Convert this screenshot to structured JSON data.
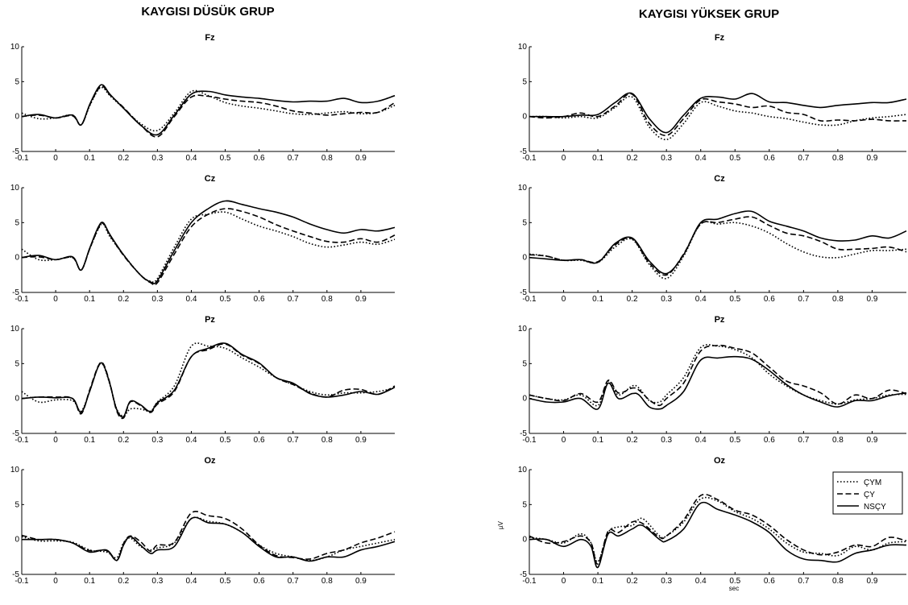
{
  "chart_data": [
    {
      "type": "line",
      "group": "KAYGISI DÜSÜK GRUP",
      "title": "Fz",
      "xlim": [
        -0.1,
        1.0
      ],
      "ylim": [
        -5,
        10
      ],
      "xticks": [
        -0.1,
        0,
        0.1,
        0.2,
        0.3,
        0.4,
        0.5,
        0.6,
        0.7,
        0.8,
        0.9
      ],
      "yticks": [
        -5,
        0,
        5,
        10
      ],
      "xlabel": "",
      "ylabel": "",
      "x": [
        -0.1,
        -0.05,
        0,
        0.05,
        0.075,
        0.1,
        0.125,
        0.14,
        0.16,
        0.2,
        0.25,
        0.3,
        0.35,
        0.4,
        0.45,
        0.5,
        0.55,
        0.6,
        0.65,
        0.7,
        0.75,
        0.8,
        0.85,
        0.9,
        0.95,
        1.0
      ],
      "series": [
        {
          "name": "ÇYM",
          "values": [
            0.5,
            -0.3,
            -0.2,
            0.2,
            -1.2,
            1.5,
            3.8,
            4.1,
            3.0,
            1.2,
            -1.0,
            -2.0,
            0.5,
            3.6,
            3.0,
            2.0,
            1.5,
            1.2,
            0.8,
            0.4,
            0.3,
            0.5,
            0.7,
            0.4,
            0.6,
            1.6
          ]
        },
        {
          "name": "ÇY",
          "values": [
            0.0,
            0.2,
            -0.2,
            0.1,
            -1.2,
            1.6,
            3.9,
            4.3,
            3.1,
            1.3,
            -1.2,
            -2.9,
            0.0,
            2.8,
            2.9,
            2.5,
            2.2,
            2.0,
            1.5,
            0.8,
            0.5,
            0.2,
            0.4,
            0.6,
            0.6,
            2.0
          ]
        },
        {
          "name": "NSÇY",
          "values": [
            0.0,
            0.3,
            -0.2,
            0.2,
            -1.2,
            1.7,
            4.1,
            4.5,
            3.2,
            1.2,
            -1.2,
            -2.6,
            0.2,
            3.2,
            3.6,
            3.1,
            2.8,
            2.6,
            2.3,
            2.1,
            2.2,
            2.2,
            2.6,
            2.0,
            2.2,
            3.0
          ]
        }
      ]
    },
    {
      "type": "line",
      "group": "KAYGISI DÜSÜK GRUP",
      "title": "Cz",
      "xlim": [
        -0.1,
        1.0
      ],
      "ylim": [
        -5,
        10
      ],
      "xticks": [
        -0.1,
        0,
        0.1,
        0.2,
        0.3,
        0.4,
        0.5,
        0.6,
        0.7,
        0.8,
        0.9
      ],
      "yticks": [
        -5,
        0,
        5,
        10
      ],
      "xlabel": "",
      "ylabel": "",
      "x": [
        -0.1,
        -0.05,
        0,
        0.05,
        0.075,
        0.1,
        0.125,
        0.14,
        0.16,
        0.2,
        0.25,
        0.28,
        0.3,
        0.35,
        0.4,
        0.45,
        0.5,
        0.55,
        0.6,
        0.65,
        0.7,
        0.75,
        0.8,
        0.85,
        0.9,
        0.95,
        1.0
      ],
      "series": [
        {
          "name": "ÇYM",
          "values": [
            1.2,
            -0.3,
            -0.3,
            0.0,
            -1.8,
            1.2,
            4.0,
            4.8,
            3.0,
            0.4,
            -2.5,
            -3.4,
            -3.0,
            1.5,
            5.5,
            6.2,
            6.5,
            5.5,
            4.5,
            3.8,
            3.0,
            2.0,
            1.5,
            1.8,
            2.2,
            1.9,
            2.6
          ]
        },
        {
          "name": "ÇY",
          "values": [
            0.0,
            0.1,
            -0.3,
            0.0,
            -1.8,
            1.2,
            4.1,
            4.9,
            3.2,
            0.3,
            -2.5,
            -3.6,
            -3.6,
            0.5,
            4.4,
            6.2,
            7.0,
            6.6,
            5.8,
            4.7,
            3.8,
            3.0,
            2.3,
            2.2,
            2.7,
            2.2,
            3.2
          ]
        },
        {
          "name": "NSÇY",
          "values": [
            0.0,
            0.3,
            -0.3,
            0.1,
            -1.8,
            1.3,
            4.3,
            5.0,
            3.3,
            0.4,
            -2.5,
            -3.5,
            -3.3,
            1.0,
            5.0,
            7.0,
            8.1,
            7.6,
            7.0,
            6.5,
            5.8,
            4.8,
            4.0,
            3.5,
            4.0,
            3.8,
            4.3
          ]
        }
      ]
    },
    {
      "type": "line",
      "group": "KAYGISI DÜSÜK GRUP",
      "title": "Pz",
      "xlim": [
        -0.1,
        1.0
      ],
      "ylim": [
        -5,
        10
      ],
      "xticks": [
        -0.1,
        0,
        0.1,
        0.2,
        0.3,
        0.4,
        0.5,
        0.6,
        0.7,
        0.8,
        0.9
      ],
      "yticks": [
        -5,
        0,
        5,
        10
      ],
      "xlabel": "",
      "ylabel": "",
      "x": [
        -0.1,
        -0.05,
        0,
        0.05,
        0.075,
        0.1,
        0.125,
        0.14,
        0.16,
        0.18,
        0.2,
        0.22,
        0.25,
        0.28,
        0.3,
        0.35,
        0.4,
        0.45,
        0.5,
        0.55,
        0.6,
        0.65,
        0.7,
        0.75,
        0.8,
        0.85,
        0.9,
        0.95,
        1.0
      ],
      "series": [
        {
          "name": "ÇYM",
          "values": [
            1.0,
            -0.5,
            -0.2,
            -0.3,
            -1.8,
            1.0,
            4.5,
            4.8,
            2.0,
            -1.5,
            -2.5,
            -1.5,
            -1.5,
            -1.8,
            -0.5,
            1.8,
            7.5,
            7.5,
            7.2,
            5.8,
            4.5,
            3.0,
            2.0,
            1.0,
            0.5,
            0.8,
            0.8,
            1.0,
            1.5
          ]
        },
        {
          "name": "ÇY",
          "values": [
            0.0,
            0.2,
            0.2,
            0.0,
            -2.2,
            1.2,
            4.6,
            5.0,
            2.2,
            -1.8,
            -2.8,
            -0.5,
            -1.0,
            -2.0,
            -0.8,
            1.0,
            6.0,
            7.0,
            7.8,
            6.2,
            5.0,
            3.0,
            2.0,
            0.8,
            0.2,
            1.2,
            1.3,
            0.6,
            1.8
          ]
        },
        {
          "name": "NSÇY",
          "values": [
            0.0,
            0.2,
            0.1,
            0.0,
            -2.0,
            1.0,
            4.5,
            4.9,
            2.1,
            -1.6,
            -2.6,
            -0.4,
            -0.9,
            -1.9,
            -0.6,
            1.2,
            6.0,
            7.2,
            7.9,
            6.3,
            5.1,
            3.0,
            2.2,
            0.7,
            0.2,
            0.5,
            1.0,
            0.6,
            1.6
          ]
        }
      ]
    },
    {
      "type": "line",
      "group": "KAYGISI DÜSÜK GRUP",
      "title": "Oz",
      "xlim": [
        -0.1,
        1.0
      ],
      "ylim": [
        -5,
        10
      ],
      "xticks": [
        -0.1,
        0,
        0.1,
        0.2,
        0.3,
        0.4,
        0.5,
        0.6,
        0.7,
        0.8,
        0.9
      ],
      "yticks": [
        -5,
        0,
        5,
        10
      ],
      "xlabel": "",
      "ylabel": "",
      "x": [
        -0.1,
        -0.05,
        0,
        0.05,
        0.1,
        0.15,
        0.18,
        0.2,
        0.22,
        0.25,
        0.28,
        0.3,
        0.35,
        0.4,
        0.45,
        0.5,
        0.55,
        0.6,
        0.65,
        0.7,
        0.75,
        0.8,
        0.85,
        0.9,
        0.95,
        1.0
      ],
      "series": [
        {
          "name": "ÇYM",
          "values": [
            0.4,
            -0.2,
            -0.2,
            -0.4,
            -1.5,
            -1.8,
            -2.6,
            -0.5,
            0.2,
            -1.0,
            -1.5,
            -1.2,
            -0.5,
            3.0,
            2.6,
            2.2,
            1.0,
            -0.8,
            -2.0,
            -2.5,
            -3.0,
            -2.5,
            -1.5,
            -1.0,
            -0.5,
            0.0
          ]
        },
        {
          "name": "ÇY",
          "values": [
            0.6,
            0.0,
            0.0,
            -0.5,
            -1.6,
            -1.6,
            -3.0,
            -0.6,
            0.5,
            -0.3,
            -1.7,
            -0.8,
            -0.4,
            3.8,
            3.4,
            3.0,
            1.5,
            -0.8,
            -2.3,
            -2.6,
            -2.8,
            -2.0,
            -1.5,
            -0.5,
            0.2,
            1.1
          ]
        },
        {
          "name": "NSÇY",
          "values": [
            0.0,
            0.0,
            0.0,
            -0.5,
            -1.8,
            -1.5,
            -3.0,
            -0.8,
            0.4,
            -0.8,
            -2.0,
            -1.5,
            -1.0,
            3.0,
            2.4,
            2.2,
            1.0,
            -1.0,
            -2.5,
            -2.5,
            -3.1,
            -2.5,
            -2.5,
            -1.5,
            -1.0,
            -0.3
          ]
        }
      ]
    },
    {
      "type": "line",
      "group": "KAYGISI YÜKSEK GRUP",
      "title": "Fz",
      "xlim": [
        -0.1,
        1.0
      ],
      "ylim": [
        -5,
        10
      ],
      "xticks": [
        -0.1,
        0,
        0.1,
        0.2,
        0.3,
        0.4,
        0.5,
        0.6,
        0.7,
        0.8,
        0.9
      ],
      "yticks": [
        -5,
        0,
        5,
        10
      ],
      "xlabel": "",
      "ylabel": "",
      "x": [
        -0.1,
        -0.05,
        0,
        0.05,
        0.1,
        0.15,
        0.2,
        0.25,
        0.3,
        0.35,
        0.4,
        0.45,
        0.5,
        0.55,
        0.6,
        0.65,
        0.7,
        0.75,
        0.8,
        0.85,
        0.9,
        0.95,
        1.0
      ],
      "series": [
        {
          "name": "ÇYM",
          "values": [
            0.0,
            0.0,
            -0.2,
            0.0,
            -0.2,
            1.3,
            2.8,
            -1.5,
            -3.3,
            -1.0,
            2.0,
            1.5,
            0.8,
            0.5,
            0.0,
            -0.3,
            -0.8,
            -1.2,
            -1.2,
            -0.6,
            -0.2,
            0.0,
            0.3
          ]
        },
        {
          "name": "ÇY",
          "values": [
            0.0,
            -0.2,
            0.0,
            0.5,
            0.0,
            1.5,
            3.2,
            -1.0,
            -2.7,
            -0.3,
            2.4,
            2.1,
            1.8,
            1.3,
            1.5,
            0.6,
            0.3,
            -0.6,
            -0.5,
            -0.6,
            -0.4,
            -0.6,
            -0.6
          ]
        },
        {
          "name": "NSÇY",
          "values": [
            0.0,
            0.0,
            0.0,
            0.2,
            0.3,
            2.0,
            3.3,
            -0.3,
            -2.3,
            0.2,
            2.6,
            2.8,
            2.5,
            3.3,
            2.1,
            2.0,
            1.6,
            1.3,
            1.6,
            1.8,
            2.0,
            2.0,
            2.5
          ]
        }
      ]
    },
    {
      "type": "line",
      "group": "KAYGISI YÜKSEK GRUP",
      "title": "Cz",
      "xlim": [
        -0.1,
        1.0
      ],
      "ylim": [
        -5,
        10
      ],
      "xticks": [
        -0.1,
        0,
        0.1,
        0.2,
        0.3,
        0.4,
        0.5,
        0.6,
        0.7,
        0.8,
        0.9
      ],
      "yticks": [
        -5,
        0,
        5,
        10
      ],
      "xlabel": "",
      "ylabel": "",
      "x": [
        -0.1,
        -0.05,
        0,
        0.05,
        0.1,
        0.15,
        0.2,
        0.25,
        0.3,
        0.35,
        0.4,
        0.45,
        0.5,
        0.55,
        0.6,
        0.65,
        0.7,
        0.75,
        0.8,
        0.85,
        0.9,
        0.95,
        1.0
      ],
      "series": [
        {
          "name": "ÇYM",
          "values": [
            0.5,
            0.2,
            -0.4,
            -0.4,
            -0.7,
            1.5,
            2.6,
            -1.0,
            -3.0,
            0.2,
            4.8,
            4.8,
            5.0,
            4.5,
            3.5,
            2.0,
            0.8,
            0.1,
            0.0,
            0.5,
            1.0,
            1.0,
            1.2
          ]
        },
        {
          "name": "ÇY",
          "values": [
            0.4,
            0.2,
            -0.4,
            -0.3,
            -0.6,
            1.8,
            2.7,
            -0.8,
            -2.5,
            0.5,
            4.8,
            5.0,
            5.5,
            5.8,
            4.6,
            3.5,
            3.1,
            2.3,
            1.2,
            1.2,
            1.3,
            1.5,
            0.8
          ]
        },
        {
          "name": "NSÇY",
          "values": [
            0.0,
            -0.2,
            -0.4,
            -0.3,
            -0.7,
            2.0,
            2.8,
            -0.5,
            -2.3,
            0.4,
            5.0,
            5.5,
            6.3,
            6.6,
            5.2,
            4.5,
            3.8,
            2.8,
            2.4,
            2.5,
            3.1,
            2.8,
            3.8
          ]
        }
      ]
    },
    {
      "type": "line",
      "group": "KAYGISI YÜKSEK GRUP",
      "title": "Pz",
      "xlim": [
        -0.1,
        1.0
      ],
      "ylim": [
        -5,
        10
      ],
      "xticks": [
        -0.1,
        0,
        0.1,
        0.2,
        0.3,
        0.4,
        0.5,
        0.6,
        0.7,
        0.8,
        0.9
      ],
      "yticks": [
        -5,
        0,
        5,
        10
      ],
      "xlabel": "",
      "ylabel": "",
      "x": [
        -0.1,
        -0.05,
        0,
        0.05,
        0.1,
        0.13,
        0.16,
        0.2,
        0.22,
        0.25,
        0.28,
        0.3,
        0.35,
        0.4,
        0.45,
        0.5,
        0.55,
        0.6,
        0.65,
        0.7,
        0.75,
        0.8,
        0.85,
        0.9,
        0.95,
        1.0
      ],
      "series": [
        {
          "name": "ÇYM",
          "values": [
            0.5,
            0.0,
            -0.2,
            0.5,
            -1.0,
            2.5,
            0.5,
            1.8,
            1.5,
            -0.3,
            -0.5,
            0.5,
            3.0,
            7.3,
            7.5,
            7.0,
            5.8,
            3.5,
            1.8,
            0.5,
            -0.3,
            -0.8,
            -0.2,
            0.0,
            0.5,
            0.6
          ]
        },
        {
          "name": "ÇY",
          "values": [
            0.5,
            0.0,
            -0.3,
            0.7,
            -0.5,
            2.6,
            0.8,
            1.5,
            1.2,
            -0.2,
            -1.0,
            0.0,
            2.2,
            6.8,
            7.6,
            7.2,
            6.5,
            4.5,
            2.5,
            1.8,
            0.8,
            -0.8,
            0.5,
            0.0,
            1.2,
            0.7
          ]
        },
        {
          "name": "NSÇY",
          "values": [
            0.0,
            -0.5,
            -0.5,
            0.0,
            -1.5,
            2.2,
            0.0,
            0.7,
            0.5,
            -1.2,
            -1.5,
            -1.0,
            1.0,
            5.5,
            5.8,
            6.0,
            5.6,
            4.0,
            2.0,
            0.5,
            -0.5,
            -1.2,
            -0.3,
            -0.3,
            0.4,
            0.8
          ]
        }
      ]
    },
    {
      "type": "line",
      "group": "KAYGISI YÜKSEK GRUP",
      "title": "Oz",
      "xlim": [
        -0.1,
        1.0
      ],
      "ylim": [
        -5,
        10
      ],
      "xticks": [
        -0.1,
        0,
        0.1,
        0.2,
        0.3,
        0.4,
        0.5,
        0.6,
        0.7,
        0.8,
        0.9
      ],
      "yticks": [
        -5,
        0,
        5,
        10
      ],
      "xlabel": "sec",
      "ylabel": "µV",
      "x": [
        -0.1,
        -0.05,
        0,
        0.05,
        0.08,
        0.1,
        0.13,
        0.16,
        0.2,
        0.23,
        0.28,
        0.3,
        0.35,
        0.4,
        0.45,
        0.5,
        0.55,
        0.6,
        0.65,
        0.7,
        0.75,
        0.8,
        0.85,
        0.9,
        0.95,
        1.0
      ],
      "series": [
        {
          "name": "ÇYM",
          "values": [
            0.3,
            0.0,
            -0.5,
            0.8,
            -0.5,
            -3.2,
            1.0,
            1.8,
            2.0,
            3.0,
            0.5,
            0.5,
            2.5,
            5.8,
            5.5,
            4.0,
            3.0,
            1.5,
            -0.5,
            -1.8,
            -2.0,
            -2.3,
            -1.0,
            -1.5,
            -0.5,
            -0.3
          ]
        },
        {
          "name": "ÇY",
          "values": [
            0.5,
            -0.5,
            -0.3,
            0.5,
            -0.5,
            -3.5,
            1.2,
            1.0,
            2.5,
            2.3,
            0.3,
            0.5,
            2.8,
            6.3,
            5.7,
            4.2,
            3.5,
            2.0,
            0.0,
            -1.5,
            -2.2,
            -1.8,
            -0.8,
            -1.0,
            0.3,
            -0.2
          ]
        },
        {
          "name": "NSÇY",
          "values": [
            0.0,
            0.0,
            -1.0,
            0.0,
            -1.0,
            -4.0,
            0.8,
            0.5,
            1.5,
            2.0,
            0.0,
            -0.2,
            1.5,
            5.2,
            4.3,
            3.5,
            2.5,
            1.0,
            -1.5,
            -2.8,
            -3.0,
            -3.2,
            -2.0,
            -1.5,
            -0.8,
            -0.8
          ]
        }
      ]
    }
  ],
  "legend": {
    "position": "top-right of bottom-right panel",
    "items": [
      "ÇYM",
      "ÇY",
      "NSÇY"
    ]
  },
  "line_styles": {
    "ÇYM": "dotted",
    "ÇY": "dashed",
    "NSÇY": "solid"
  },
  "colors": {
    "lines": "#000000",
    "background": "#ffffff"
  }
}
